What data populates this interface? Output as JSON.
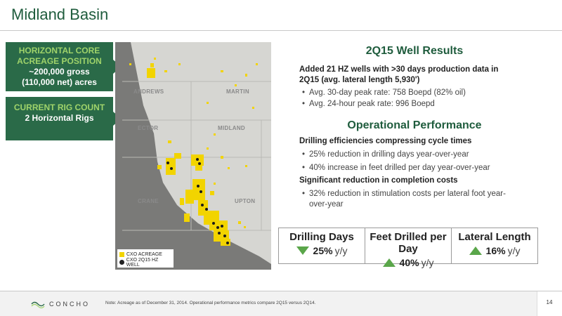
{
  "title": "Midland Basin",
  "callouts": [
    {
      "head": "HORIZONTAL CORE ACREAGE POSITION",
      "body_line1": "~200,000 gross",
      "body_line2": "(110,000 net) acres"
    },
    {
      "head": "CURRENT RIG COUNT",
      "body": "2 Horizontal Rigs"
    }
  ],
  "map": {
    "counties": [
      "ANDREWS",
      "MARTIN",
      "ECTOR",
      "MIDLAND",
      "CRANE",
      "UPTON"
    ],
    "legend": {
      "acreage": "CXO ACREAGE",
      "well": "CXO 2Q15 HZ WELL"
    },
    "colors": {
      "acreage": "#f2d400",
      "well": "#1a1a1a",
      "basin": "#7a7a78",
      "land": "#d6d6d2"
    }
  },
  "well_results": {
    "heading": "2Q15 Well Results",
    "summary_line1": "Added 21 HZ wells with >30 days production data in",
    "summary_line2": "2Q15 (avg. lateral length 5,930')",
    "bullets": [
      "Avg. 30-day peak rate: 758 Boepd (82% oil)",
      "Avg. 24-hour peak rate: 996 Boepd"
    ]
  },
  "operational": {
    "heading": "Operational Performance",
    "sub1": "Drilling efficiencies compressing cycle times",
    "bullets1": [
      "25% reduction in drilling days year-over-year",
      "40% increase in feet drilled per day year-over-year"
    ],
    "sub2": "Significant reduction in completion costs",
    "bullet2_line1": "32% reduction in stimulation costs per lateral foot year-",
    "bullet2_line2": "over-year"
  },
  "metrics": [
    {
      "label": "Drilling Days",
      "value": "25%",
      "unit": "y/y",
      "direction": "down"
    },
    {
      "label": "Feet Drilled per Day",
      "value": "40%",
      "unit": "y/y",
      "direction": "up"
    },
    {
      "label": "Lateral Length",
      "value": "16%",
      "unit": "y/y",
      "direction": "up"
    }
  ],
  "footer": {
    "logo_text": "CONCHO",
    "note": "Note: Acreage as of December 31, 2014. Operational performance metrics compare 2Q15 versus 2Q14.",
    "page_number": "14"
  },
  "colors": {
    "brand_green": "#1f5c3d",
    "callout_bg": "#2a6a48",
    "callout_head": "#9fd36a",
    "arrow_green": "#5aa64a"
  }
}
